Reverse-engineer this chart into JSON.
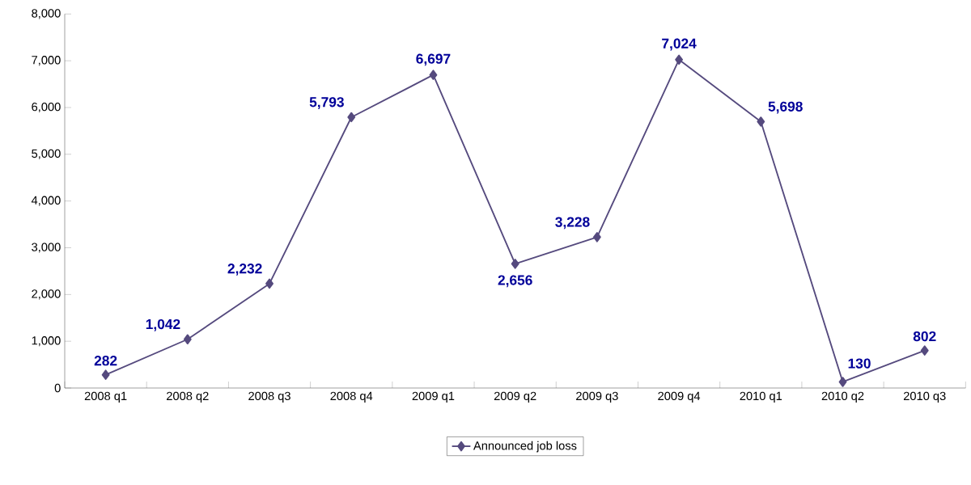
{
  "chart_data": {
    "type": "line",
    "categories": [
      "2008 q1",
      "2008 q2",
      "2008 q3",
      "2008 q4",
      "2009 q1",
      "2009 q2",
      "2009 q3",
      "2009 q4",
      "2010 q1",
      "2010 q2",
      "2010 q3"
    ],
    "series": [
      {
        "name": "Announced job loss",
        "color": "#554a7e",
        "values": [
          282,
          1042,
          2232,
          5793,
          6697,
          2656,
          3228,
          7024,
          5698,
          130,
          802
        ],
        "value_labels": [
          "282",
          "1,042",
          "2,232",
          "5,793",
          "6,697",
          "2,656",
          "3,228",
          "7,024",
          "5,698",
          "130",
          "802"
        ]
      }
    ],
    "ylim": [
      0,
      8000
    ],
    "yticks": [
      0,
      {
        "value": 1000,
        "label": "1,000"
      },
      {
        "value": 2000,
        "label": "2,000"
      },
      {
        "value": 3000,
        "label": "3,000"
      },
      {
        "value": 4000,
        "label": "4,000"
      },
      {
        "value": 5000,
        "label": "5,000"
      },
      {
        "value": 6000,
        "label": "6,000"
      },
      {
        "value": 7000,
        "label": "7,000"
      },
      {
        "value": 8000,
        "label": "8,000"
      }
    ],
    "legend": "bottom",
    "marker": "diamond",
    "line_style": "solid",
    "grid": false
  }
}
